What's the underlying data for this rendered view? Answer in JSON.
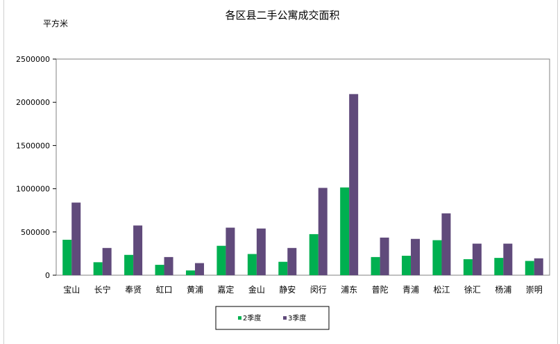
{
  "chart_data": {
    "type": "bar",
    "title": "各区县二手公寓成交面积",
    "ylabel": "平方米",
    "ylim": [
      0,
      2500000
    ],
    "yticks": [
      0,
      500000,
      1000000,
      1500000,
      2000000,
      2500000
    ],
    "yticklabels": [
      "0",
      "500000",
      "1000000",
      "1500000",
      "2000000",
      "2500000"
    ],
    "grid": false,
    "legend": "bottom",
    "categories": [
      "宝山",
      "长宁",
      "奉贤",
      "虹口",
      "黄浦",
      "嘉定",
      "金山",
      "静安",
      "闵行",
      "浦东",
      "普陀",
      "青浦",
      "松江",
      "徐汇",
      "杨浦",
      "崇明"
    ],
    "series": [
      {
        "name": "2季度",
        "color": "#00b050",
        "values": [
          410000,
          150000,
          235000,
          120000,
          55000,
          340000,
          245000,
          155000,
          475000,
          1015000,
          210000,
          225000,
          405000,
          185000,
          200000,
          165000
        ]
      },
      {
        "name": "3季度",
        "color": "#604a7b",
        "values": [
          840000,
          315000,
          575000,
          210000,
          140000,
          550000,
          540000,
          315000,
          1010000,
          2095000,
          435000,
          420000,
          715000,
          365000,
          365000,
          195000
        ]
      }
    ]
  }
}
